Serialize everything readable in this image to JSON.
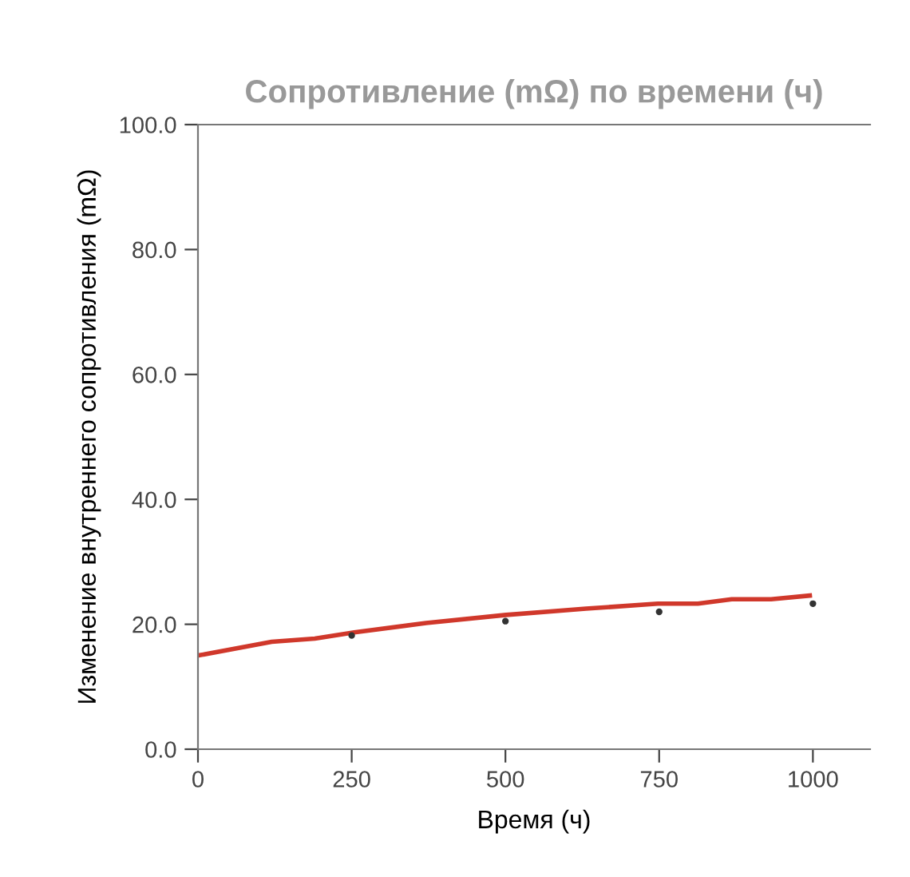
{
  "chart_data": {
    "type": "line",
    "title": "Сопротивление (mΩ) по времени (ч)",
    "xlabel": "Время (ч)",
    "ylabel": "Изменение внутреннего сопротивления (mΩ)",
    "series": [
      {
        "color": "#d0382b",
        "x": [
          0,
          120,
          190,
          254,
          371,
          501,
          631,
          748,
          813,
          868,
          932,
          995
        ],
        "values": [
          15.0,
          17.2,
          17.7,
          18.7,
          20.2,
          21.5,
          22.5,
          23.3,
          23.3,
          24.0,
          24.0,
          24.6
        ]
      },
      {
        "type": "scatter",
        "color": "#333333",
        "x": [
          250,
          500,
          750,
          1000
        ],
        "values": [
          18.2,
          20.5,
          22.0,
          23.3
        ]
      }
    ],
    "xlim": [
      0,
      1093
    ],
    "xticks": [
      0,
      250,
      500,
      750,
      1000
    ],
    "ylim": [
      0,
      100
    ],
    "yticks": [
      {
        "value": 0,
        "label": "0.0"
      },
      {
        "value": 20,
        "label": "20.0"
      },
      {
        "value": 40,
        "label": "40.0"
      },
      {
        "value": 60,
        "label": "60.0"
      },
      {
        "value": 80,
        "label": "80.0"
      },
      {
        "value": 100,
        "label": "100.0"
      }
    ],
    "grid": false,
    "legend": false
  }
}
